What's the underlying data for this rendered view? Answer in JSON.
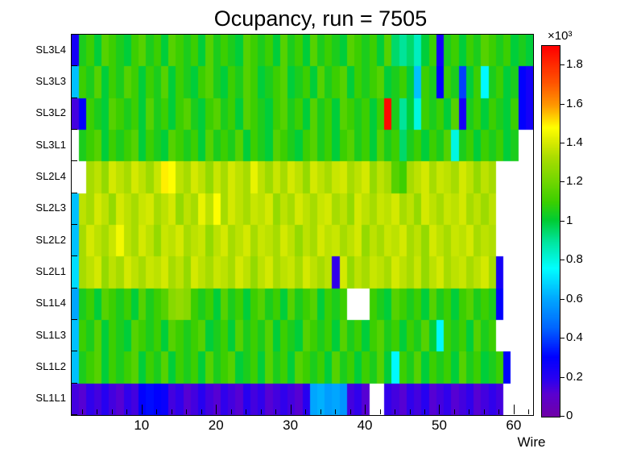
{
  "chart_data": {
    "type": "heatmap",
    "title": "Ocupancy, run = 7505",
    "xlabel": "Wire",
    "x_ticks": [
      10,
      20,
      30,
      40,
      50,
      60
    ],
    "x_min": 0.5,
    "x_max": 62.5,
    "n_wires": 62,
    "row_labels_top_to_bottom": [
      "SL3L4",
      "SL3L3",
      "SL3L2",
      "SL3L1",
      "SL2L4",
      "SL2L3",
      "SL2L2",
      "SL2L1",
      "SL1L4",
      "SL1L3",
      "SL1L2",
      "SL1L1"
    ],
    "zmin": 0,
    "zmax": 1900,
    "colorbar": {
      "exponent_label": "×10³",
      "ticks": [
        {
          "value": 1800,
          "label": "1.8"
        },
        {
          "value": 1600,
          "label": "1.6"
        },
        {
          "value": 1400,
          "label": "1.4"
        },
        {
          "value": 1200,
          "label": "1.2"
        },
        {
          "value": 1000,
          "label": "1"
        },
        {
          "value": 800,
          "label": "0.8"
        },
        {
          "value": 600,
          "label": "0.6"
        },
        {
          "value": 400,
          "label": "0.4"
        },
        {
          "value": 200,
          "label": "0.2"
        },
        {
          "value": 0,
          "label": "0"
        }
      ]
    },
    "palette": [
      [
        0.0,
        "#7000a8"
      ],
      [
        0.06,
        "#5a00d0"
      ],
      [
        0.1,
        "#2a00f0"
      ],
      [
        0.16,
        "#0000ff"
      ],
      [
        0.24,
        "#0066ff"
      ],
      [
        0.32,
        "#00aaff"
      ],
      [
        0.4,
        "#00ffff"
      ],
      [
        0.47,
        "#00e6a0"
      ],
      [
        0.53,
        "#00cc33"
      ],
      [
        0.58,
        "#3ccf00"
      ],
      [
        0.65,
        "#80d800"
      ],
      [
        0.7,
        "#aadd00"
      ],
      [
        0.74,
        "#d8ea00"
      ],
      [
        0.78,
        "#ffff00"
      ],
      [
        0.84,
        "#ff9900"
      ],
      [
        0.9,
        "#ff5500"
      ],
      [
        1.0,
        "#ff0000"
      ]
    ],
    "grid": [
      [
        250,
        1050,
        1100,
        1000,
        1150,
        1100,
        1050,
        1000,
        1100,
        1150,
        1050,
        1100,
        1000,
        1150,
        1100,
        1050,
        1100,
        1000,
        1150,
        1050,
        1100,
        1050,
        1000,
        1150,
        1100,
        1050,
        1100,
        1000,
        1150,
        1050,
        1100,
        1000,
        1150,
        1050,
        1100,
        1050,
        1000,
        1150,
        1100,
        1050,
        1100,
        1000,
        1150,
        950,
        900,
        950,
        850,
        1000,
        1100,
        250,
        1050,
        1100,
        1000,
        1100,
        1050,
        1150,
        1100,
        1050,
        1100,
        1000,
        1050,
        1000
      ],
      [
        650,
        1100,
        1050,
        1150,
        1000,
        1100,
        1050,
        1150,
        1100,
        1000,
        1100,
        1050,
        1150,
        1000,
        1100,
        1050,
        1000,
        1100,
        1150,
        1050,
        1000,
        1100,
        1050,
        1150,
        1100,
        1000,
        1050,
        1100,
        1150,
        1000,
        1050,
        1100,
        1000,
        1150,
        1050,
        1100,
        1150,
        1000,
        1100,
        1050,
        1100,
        1150,
        1000,
        1050,
        1100,
        1000,
        650,
        1100,
        1050,
        300,
        1100,
        1050,
        400,
        1000,
        1100,
        750,
        1050,
        1100,
        1000,
        1050,
        300,
        250
      ],
      [
        150,
        300,
        1100,
        1050,
        1000,
        1150,
        1100,
        1050,
        1100,
        1000,
        1150,
        1050,
        1100,
        1000,
        1100,
        1150,
        1050,
        1000,
        1100,
        1150,
        1050,
        1100,
        1000,
        1150,
        1100,
        1050,
        1000,
        1100,
        1150,
        1050,
        1100,
        1000,
        1150,
        1050,
        1100,
        1000,
        1150,
        1100,
        1050,
        1100,
        1000,
        1100,
        1880,
        1050,
        900,
        1000,
        800,
        1100,
        1050,
        1100,
        1000,
        1150,
        250,
        1050,
        1100,
        1000,
        1100,
        1050,
        1000,
        1100,
        300,
        250
      ],
      [
        null,
        1050,
        1100,
        1150,
        1000,
        1100,
        1050,
        1100,
        1150,
        1000,
        1100,
        1050,
        1000,
        1150,
        1100,
        1050,
        1100,
        1000,
        1150,
        1050,
        1100,
        1050,
        1150,
        1000,
        1100,
        1050,
        1000,
        1150,
        1100,
        1050,
        1000,
        1100,
        1150,
        1050,
        1100,
        1000,
        1100,
        1150,
        1050,
        1100,
        1000,
        1150,
        1050,
        1100,
        950,
        1050,
        1100,
        1000,
        1100,
        1050,
        1150,
        800,
        1050,
        1100,
        1000,
        1100,
        1050,
        1100,
        1000,
        1050,
        null,
        null
      ],
      [
        null,
        null,
        1320,
        1360,
        1280,
        1400,
        1360,
        1320,
        1400,
        1360,
        1300,
        1380,
        1500,
        1480,
        1360,
        1320,
        1400,
        1360,
        1280,
        1380,
        1320,
        1400,
        1360,
        1320,
        1440,
        1360,
        1300,
        1380,
        1320,
        1400,
        1360,
        1280,
        1400,
        1360,
        1320,
        1380,
        1400,
        1320,
        1360,
        1400,
        1280,
        1360,
        1320,
        1150,
        1100,
        1320,
        1360,
        1400,
        1320,
        1380,
        1360,
        1320,
        1400,
        1360,
        1280,
        1360,
        1320,
        null,
        null,
        null,
        null,
        null
      ],
      [
        650,
        1360,
        1320,
        1400,
        1360,
        1280,
        1400,
        1360,
        1320,
        1380,
        1400,
        1320,
        1360,
        1400,
        1280,
        1360,
        1320,
        1440,
        1360,
        1480,
        1320,
        1400,
        1360,
        1320,
        1380,
        1360,
        1400,
        1280,
        1360,
        1320,
        1400,
        1360,
        1320,
        1380,
        1400,
        1320,
        1360,
        1280,
        1400,
        1360,
        1320,
        1380,
        1360,
        1400,
        1320,
        1360,
        1280,
        1400,
        1360,
        1320,
        1380,
        1360,
        1400,
        1320,
        1360,
        1300,
        1360,
        null,
        null,
        null,
        null,
        null
      ],
      [
        650,
        1320,
        1400,
        1360,
        1320,
        1380,
        1460,
        1360,
        1320,
        1400,
        1360,
        1280,
        1380,
        1360,
        1400,
        1320,
        1360,
        1380,
        1280,
        1360,
        1400,
        1320,
        1360,
        1400,
        1320,
        1380,
        1360,
        1320,
        1400,
        1360,
        1280,
        1360,
        1320,
        1400,
        1360,
        1380,
        1320,
        1360,
        1400,
        1280,
        1360,
        1320,
        1380,
        1360,
        1400,
        1320,
        1360,
        1280,
        1400,
        1360,
        1320,
        1380,
        1360,
        1400,
        1320,
        1360,
        1340,
        null,
        null,
        null,
        null,
        null
      ],
      [
        700,
        1320,
        1360,
        1400,
        1280,
        1360,
        1320,
        1400,
        1360,
        1320,
        1380,
        1360,
        1400,
        1320,
        1360,
        1280,
        1400,
        1360,
        1320,
        1380,
        1360,
        1320,
        1400,
        1360,
        1280,
        1360,
        1400,
        1320,
        1360,
        1380,
        1320,
        1400,
        1360,
        1320,
        1360,
        180,
        1400,
        1280,
        1360,
        1320,
        1380,
        1360,
        1320,
        1400,
        1360,
        1320,
        1380,
        1280,
        1360,
        1400,
        1320,
        1360,
        1380,
        1320,
        1360,
        1400,
        1320,
        250,
        null,
        null,
        null,
        null
      ],
      [
        600,
        1050,
        1100,
        1000,
        1150,
        1100,
        1050,
        1100,
        1000,
        1150,
        1050,
        1100,
        1150,
        1250,
        1280,
        1250,
        1100,
        1050,
        1100,
        1000,
        1150,
        1050,
        1100,
        1000,
        1100,
        1150,
        1050,
        1100,
        1000,
        1150,
        1050,
        1100,
        1150,
        1000,
        1100,
        1050,
        1100,
        null,
        null,
        null,
        1100,
        1050,
        1000,
        1150,
        1100,
        1050,
        1100,
        1000,
        1150,
        1050,
        1100,
        1000,
        1100,
        1150,
        1050,
        1100,
        1050,
        300,
        null,
        null,
        null,
        null
      ],
      [
        650,
        1100,
        1050,
        1150,
        1000,
        1100,
        1050,
        1000,
        1150,
        1100,
        1050,
        1100,
        1000,
        1150,
        1100,
        1050,
        1100,
        1150,
        1000,
        1050,
        1100,
        1000,
        1150,
        1050,
        1100,
        1050,
        1150,
        1000,
        1100,
        1050,
        1000,
        1150,
        1100,
        1050,
        1100,
        1000,
        1150,
        1050,
        1100,
        1000,
        1100,
        1150,
        1050,
        1100,
        1000,
        1100,
        1050,
        1150,
        1000,
        750,
        1100,
        1050,
        1100,
        1000,
        1150,
        1050,
        1100,
        null,
        null,
        null,
        null,
        null
      ],
      [
        650,
        1050,
        1100,
        1150,
        1000,
        1100,
        1050,
        1100,
        1150,
        1000,
        1100,
        1050,
        1150,
        1000,
        1100,
        1050,
        1100,
        1000,
        1150,
        1050,
        1100,
        1150,
        1000,
        1050,
        1100,
        1000,
        1150,
        1050,
        1100,
        1000,
        1150,
        1100,
        1050,
        1100,
        1000,
        1150,
        1050,
        1100,
        1000,
        1100,
        1050,
        1150,
        1000,
        750,
        1100,
        1050,
        1150,
        1000,
        1100,
        1050,
        1100,
        1000,
        1150,
        1050,
        1100,
        1000,
        1050,
        1100,
        300,
        null,
        null,
        null
      ],
      [
        150,
        120,
        180,
        150,
        200,
        150,
        120,
        180,
        150,
        300,
        320,
        300,
        280,
        150,
        180,
        120,
        150,
        200,
        150,
        120,
        180,
        150,
        120,
        200,
        150,
        180,
        120,
        150,
        180,
        150,
        120,
        200,
        600,
        620,
        580,
        600,
        560,
        150,
        180,
        120,
        null,
        null,
        180,
        150,
        120,
        180,
        150,
        200,
        120,
        150,
        180,
        120,
        150,
        180,
        120,
        150,
        180,
        150,
        null,
        null,
        null,
        null
      ]
    ]
  }
}
